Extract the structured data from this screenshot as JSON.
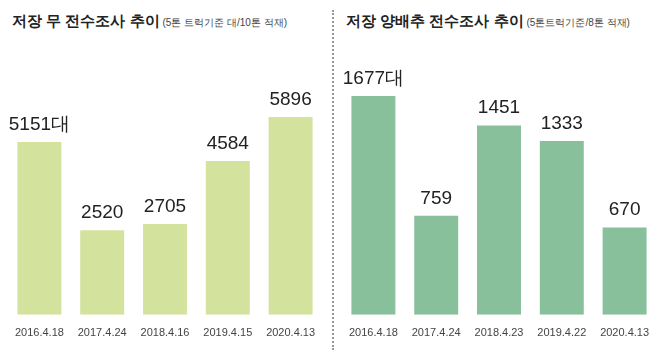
{
  "chart_data": [
    {
      "type": "bar",
      "title": "저장 무 전수조사 추이",
      "subtitle": "(5톤 트럭기준 대/10톤 적재)",
      "categories": [
        "2016.4.18",
        "2017.4.24",
        "2018.4.16",
        "2019.4.15",
        "2020.4.13"
      ],
      "values": [
        5151,
        2520,
        2705,
        4584,
        5896
      ],
      "value_labels": [
        "5151대",
        "2520",
        "2705",
        "4584",
        "5896"
      ],
      "color": "#d3e29d",
      "data_labels": true,
      "tick_labels": "x",
      "grid": false
    },
    {
      "type": "bar",
      "title": "저장 양배추 전수조사 추이",
      "subtitle": "(5톤트럭기준/8톤 적재)",
      "categories": [
        "2016.4.18",
        "2017.4.24",
        "2018.4.23",
        "2019.4.22",
        "2020.4.13"
      ],
      "values": [
        1677,
        759,
        1451,
        1333,
        670
      ],
      "value_labels": [
        "1677대",
        "759",
        "1451",
        "1333",
        "670"
      ],
      "color": "#88c09b",
      "data_labels": true,
      "tick_labels": "x",
      "grid": false
    }
  ]
}
